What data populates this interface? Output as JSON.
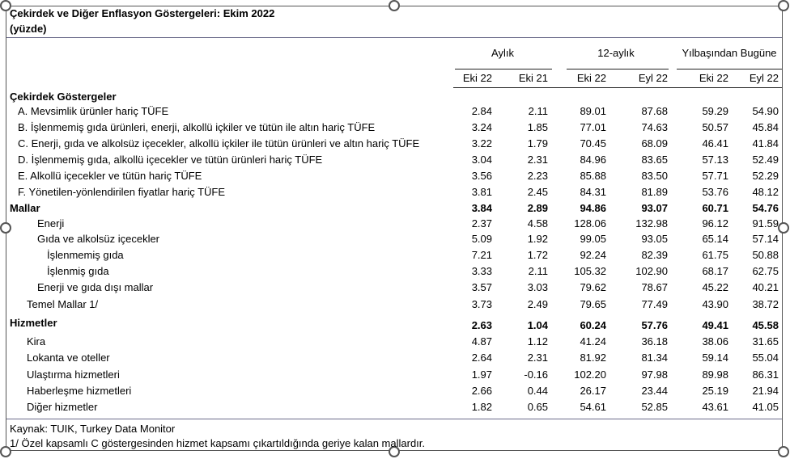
{
  "title": "Çekirdek ve Diğer Enflasyon Göstergeleri: Ekim 2022",
  "subtitle": "(yüzde)",
  "groups": [
    "Aylık",
    "12-aylık",
    "Yılbaşından Bugüne"
  ],
  "columns": [
    "Eki 22",
    "Eki 21",
    "Eki 22",
    "Eyl 22",
    "Eki 22",
    "Eyl 22"
  ],
  "section_core": "Çekirdek Göstergeler",
  "rows": [
    {
      "label": "A. Mevsimlik ürünler hariç TÜFE",
      "values": [
        "2.84",
        "2.11",
        "89.01",
        "87.68",
        "59.29",
        "54.90"
      ]
    },
    {
      "label": "B. İşlenmemiş gıda ürünleri, enerji, alkollü içkiler ve tütün ile altın hariç TÜFE",
      "values": [
        "3.24",
        "1.85",
        "77.01",
        "74.63",
        "50.57",
        "45.84"
      ]
    },
    {
      "label": "C. Enerji, gıda ve alkolsüz içecekler, alkollü içkiler ile tütün ürünleri ve altın hariç TÜFE",
      "values": [
        "3.22",
        "1.79",
        "70.45",
        "68.09",
        "46.41",
        "41.84"
      ]
    },
    {
      "label": "D. İşlenmemiş gıda, alkollü içecekler ve tütün ürünleri hariç TÜFE",
      "values": [
        "3.04",
        "2.31",
        "84.96",
        "83.65",
        "57.13",
        "52.49"
      ]
    },
    {
      "label": "E. Alkollü içecekler ve tütün hariç TÜFE",
      "values": [
        "3.56",
        "2.23",
        "85.88",
        "83.50",
        "57.71",
        "52.29"
      ]
    },
    {
      "label": "F. Yönetilen-yönlendirilen fiyatlar hariç TÜFE",
      "values": [
        "3.81",
        "2.45",
        "84.31",
        "81.89",
        "53.76",
        "48.12"
      ]
    },
    {
      "label": "Mallar",
      "values": [
        "3.84",
        "2.89",
        "94.86",
        "93.07",
        "60.71",
        "54.76"
      ]
    },
    {
      "label": "Enerji",
      "values": [
        "2.37",
        "4.58",
        "128.06",
        "132.98",
        "96.12",
        "91.59"
      ]
    },
    {
      "label": "Gıda ve alkolsüz içecekler",
      "values": [
        "5.09",
        "1.92",
        "99.05",
        "93.05",
        "65.14",
        "57.14"
      ]
    },
    {
      "label": "İşlenmemiş gıda",
      "values": [
        "7.21",
        "1.72",
        "92.24",
        "82.39",
        "61.75",
        "50.88"
      ]
    },
    {
      "label": "İşlenmiş gıda",
      "values": [
        "3.33",
        "2.11",
        "105.32",
        "102.90",
        "68.17",
        "62.75"
      ]
    },
    {
      "label": "Enerji ve gıda dışı mallar",
      "values": [
        "3.57",
        "3.03",
        "79.62",
        "78.67",
        "45.22",
        "40.21"
      ]
    },
    {
      "label": "Temel Mallar 1/",
      "values": [
        "3.73",
        "2.49",
        "79.65",
        "77.49",
        "43.90",
        "38.72"
      ]
    },
    {
      "label": "Hizmetler",
      "values": [
        "2.63",
        "1.04",
        "60.24",
        "57.76",
        "49.41",
        "45.58"
      ]
    },
    {
      "label": "Kira",
      "values": [
        "4.87",
        "1.12",
        "41.24",
        "36.18",
        "38.06",
        "31.65"
      ]
    },
    {
      "label": "Lokanta ve oteller",
      "values": [
        "2.64",
        "2.31",
        "81.92",
        "81.34",
        "59.14",
        "55.04"
      ]
    },
    {
      "label": "Ulaştırma hizmetleri",
      "values": [
        "1.97",
        "-0.16",
        "102.20",
        "97.98",
        "89.98",
        "86.31"
      ]
    },
    {
      "label": "Haberleşme hizmetleri",
      "values": [
        "2.66",
        "0.44",
        "26.17",
        "23.44",
        "25.19",
        "21.94"
      ]
    },
    {
      "label": "Diğer hizmetler",
      "values": [
        "1.82",
        "0.65",
        "54.61",
        "52.85",
        "43.61",
        "41.05"
      ]
    }
  ],
  "footnotes": {
    "source": "Kaynak: TUIK, Turkey Data Monitor",
    "note": "1/ Özel kapsamlı C göstergesinden hizmet kapsamı çıkartıldığında geriye kalan mallardır."
  }
}
